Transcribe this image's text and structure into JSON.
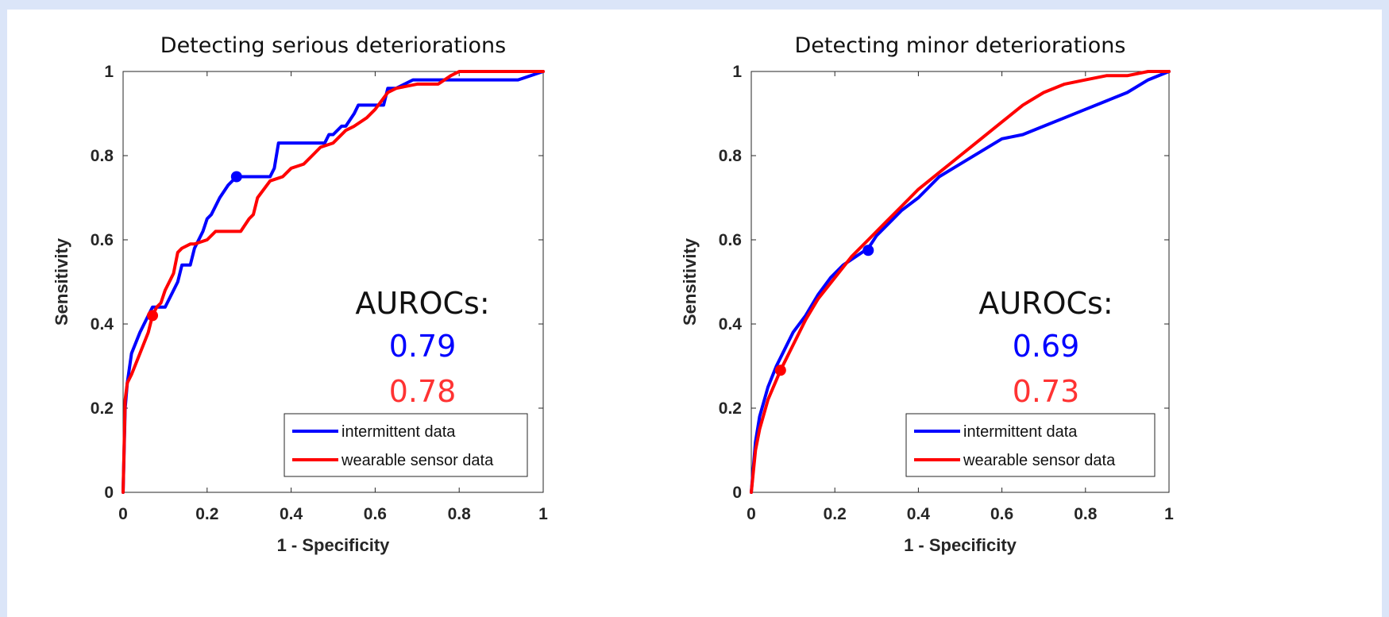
{
  "chart_data": [
    {
      "type": "line",
      "title": "Detecting serious deteriorations",
      "xlabel": "1 - Specificity",
      "ylabel": "Sensitivity",
      "xlim": [
        0,
        1
      ],
      "ylim": [
        0,
        1
      ],
      "xticks": [
        "0",
        "0.2",
        "0.4",
        "0.6",
        "0.8",
        "1"
      ],
      "yticks": [
        "0",
        "0.2",
        "0.4",
        "0.6",
        "0.8",
        "1"
      ],
      "grid": false,
      "legend_position": "bottom-right",
      "annotation": {
        "heading": "AUROCs:",
        "values": [
          {
            "text": "0.79",
            "color": "#0000ff"
          },
          {
            "text": "0.78",
            "color": "#ff3333"
          }
        ]
      },
      "series": [
        {
          "name": "intermittent data",
          "color": "#0000ff",
          "marker": {
            "x": 0.27,
            "y": 0.75
          },
          "x": [
            0,
            0.005,
            0.01,
            0.02,
            0.04,
            0.06,
            0.07,
            0.09,
            0.1,
            0.12,
            0.13,
            0.14,
            0.16,
            0.17,
            0.19,
            0.2,
            0.21,
            0.23,
            0.25,
            0.27,
            0.29,
            0.31,
            0.35,
            0.36,
            0.37,
            0.42,
            0.48,
            0.49,
            0.5,
            0.52,
            0.53,
            0.55,
            0.56,
            0.59,
            0.62,
            0.63,
            0.65,
            0.69,
            0.7,
            0.75,
            0.8,
            0.85,
            0.9,
            0.94,
            1
          ],
          "y": [
            0,
            0.2,
            0.26,
            0.33,
            0.38,
            0.42,
            0.44,
            0.44,
            0.44,
            0.48,
            0.5,
            0.54,
            0.54,
            0.58,
            0.62,
            0.65,
            0.66,
            0.7,
            0.73,
            0.75,
            0.75,
            0.75,
            0.75,
            0.77,
            0.83,
            0.83,
            0.83,
            0.85,
            0.85,
            0.87,
            0.87,
            0.9,
            0.92,
            0.92,
            0.92,
            0.96,
            0.96,
            0.98,
            0.98,
            0.98,
            0.98,
            0.98,
            0.98,
            0.98,
            1
          ]
        },
        {
          "name": "wearable sensor data",
          "color": "#ff0000",
          "marker": {
            "x": 0.07,
            "y": 0.42
          },
          "x": [
            0,
            0.005,
            0.01,
            0.02,
            0.04,
            0.06,
            0.07,
            0.08,
            0.09,
            0.1,
            0.12,
            0.13,
            0.14,
            0.16,
            0.17,
            0.2,
            0.22,
            0.25,
            0.28,
            0.3,
            0.31,
            0.32,
            0.35,
            0.38,
            0.4,
            0.43,
            0.45,
            0.47,
            0.5,
            0.53,
            0.55,
            0.58,
            0.6,
            0.63,
            0.65,
            0.7,
            0.75,
            0.78,
            0.8,
            1
          ],
          "y": [
            0,
            0.22,
            0.26,
            0.28,
            0.33,
            0.38,
            0.42,
            0.44,
            0.45,
            0.48,
            0.52,
            0.57,
            0.58,
            0.59,
            0.59,
            0.6,
            0.62,
            0.62,
            0.62,
            0.65,
            0.66,
            0.7,
            0.74,
            0.75,
            0.77,
            0.78,
            0.8,
            0.82,
            0.83,
            0.86,
            0.87,
            0.89,
            0.91,
            0.95,
            0.96,
            0.97,
            0.97,
            0.99,
            1,
            1
          ]
        }
      ]
    },
    {
      "type": "line",
      "title": "Detecting minor deteriorations",
      "xlabel": "1 - Specificity",
      "ylabel": "Sensitivity",
      "xlim": [
        0,
        1
      ],
      "ylim": [
        0,
        1
      ],
      "xticks": [
        "0",
        "0.2",
        "0.4",
        "0.6",
        "0.8",
        "1"
      ],
      "yticks": [
        "0",
        "0.2",
        "0.4",
        "0.6",
        "0.8",
        "1"
      ],
      "grid": false,
      "legend_position": "bottom-right",
      "annotation": {
        "heading": "AUROCs:",
        "values": [
          {
            "text": "0.69",
            "color": "#0000ff"
          },
          {
            "text": "0.73",
            "color": "#ff3333"
          }
        ]
      },
      "series": [
        {
          "name": "intermittent data",
          "color": "#0000ff",
          "marker": {
            "x": 0.28,
            "y": 0.575
          },
          "x": [
            0,
            0.01,
            0.02,
            0.04,
            0.06,
            0.08,
            0.1,
            0.13,
            0.16,
            0.19,
            0.22,
            0.25,
            0.28,
            0.3,
            0.33,
            0.36,
            0.4,
            0.45,
            0.5,
            0.55,
            0.6,
            0.65,
            0.7,
            0.75,
            0.8,
            0.85,
            0.9,
            0.95,
            1
          ],
          "y": [
            0,
            0.12,
            0.18,
            0.25,
            0.3,
            0.34,
            0.38,
            0.42,
            0.47,
            0.51,
            0.54,
            0.56,
            0.58,
            0.61,
            0.64,
            0.67,
            0.7,
            0.75,
            0.78,
            0.81,
            0.84,
            0.85,
            0.87,
            0.89,
            0.91,
            0.93,
            0.95,
            0.98,
            1
          ]
        },
        {
          "name": "wearable sensor data",
          "color": "#ff0000",
          "marker": {
            "x": 0.07,
            "y": 0.29
          },
          "x": [
            0,
            0.01,
            0.02,
            0.04,
            0.07,
            0.1,
            0.13,
            0.16,
            0.2,
            0.24,
            0.28,
            0.32,
            0.36,
            0.4,
            0.45,
            0.5,
            0.55,
            0.6,
            0.65,
            0.7,
            0.75,
            0.8,
            0.85,
            0.9,
            0.95,
            1
          ],
          "y": [
            0,
            0.1,
            0.15,
            0.22,
            0.29,
            0.35,
            0.41,
            0.46,
            0.51,
            0.56,
            0.6,
            0.64,
            0.68,
            0.72,
            0.76,
            0.8,
            0.84,
            0.88,
            0.92,
            0.95,
            0.97,
            0.98,
            0.99,
            0.99,
            1,
            1
          ]
        }
      ]
    }
  ]
}
